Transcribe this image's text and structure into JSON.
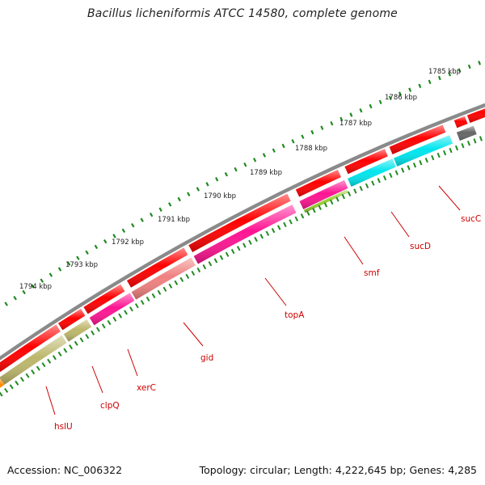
{
  "title": "Bacillus licheniformis ATCC 14580, complete genome",
  "footer": {
    "accession": "Accession: NC_006322",
    "summary": "Topology: circular; Length: 4,222,645 bp; Genes: 4,285"
  },
  "colors": {
    "backbone": "#8a8a8a",
    "gene_red": "#ff0000",
    "label_red": "#cc0000",
    "tick_green": "#1f8a1f"
  },
  "ruler": {
    "labels": [
      "1785 kbp",
      "1786 kbp",
      "1787 kbp",
      "1788 kbp",
      "1789 kbp",
      "1790 kbp",
      "1791 kbp",
      "1792 kbp",
      "1793 kbp",
      "1794 kbp"
    ]
  },
  "genes": [
    {
      "name": "hslU",
      "color": "#bdb76b"
    },
    {
      "name": "clpQ",
      "color": "#bdb76b"
    },
    {
      "name": "xerC",
      "color": "#ff1493"
    },
    {
      "name": "gid",
      "color": "#f08080"
    },
    {
      "name": "topA",
      "color": "#ff1493"
    },
    {
      "name": "smf",
      "color": "#ff1493"
    },
    {
      "name": "sucD",
      "color": "#00e5ee"
    },
    {
      "name": "sucC",
      "color": "#00e5ee"
    }
  ]
}
